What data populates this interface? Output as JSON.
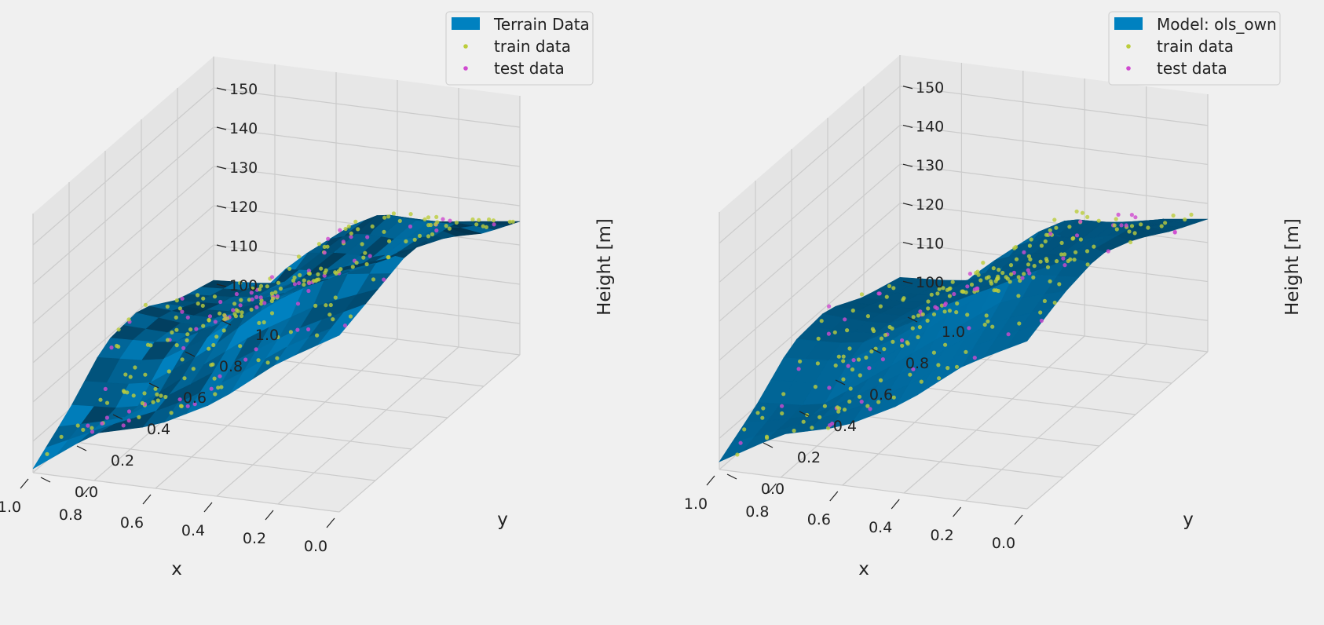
{
  "colors": {
    "background": "#f0f0f0",
    "pane": "#e6e6e6",
    "grid": "#cbcbcb",
    "surface_base": "#0081c0",
    "surface_dark": "#02344f",
    "train": "#bccd3c",
    "test": "#d04ad0"
  },
  "chart_data": [
    {
      "type": "surface3d",
      "legend": {
        "placement": "top-right",
        "entries": [
          "Terrain Data",
          "train data",
          "test data"
        ]
      },
      "xlabel": "x",
      "ylabel": "y",
      "zlabel": "Height [m]",
      "x_ticks": [
        "0.0",
        "0.2",
        "0.4",
        "0.6",
        "0.8",
        "1.0"
      ],
      "y_ticks": [
        "0.0",
        "0.2",
        "0.4",
        "0.6",
        "0.8",
        "1.0"
      ],
      "z_ticks": [
        "100",
        "110",
        "120",
        "130",
        "140",
        "150"
      ],
      "xlim": [
        0,
        1
      ],
      "ylim": [
        0,
        1
      ],
      "zlim": [
        92,
        158
      ],
      "surface_style": "faceted",
      "grid_x": [
        0.0,
        0.2,
        0.4,
        0.6,
        0.8,
        1.0
      ],
      "grid_y": [
        0.0,
        0.2,
        0.4,
        0.6,
        0.8,
        1.0
      ],
      "z_grid": [
        [
          137,
          140,
          143,
          138,
          131,
          126
        ],
        [
          128,
          133,
          147,
          143,
          133,
          124
        ],
        [
          116,
          124,
          136,
          127,
          118,
          113
        ],
        [
          108,
          113,
          119,
          114,
          111,
          108
        ],
        [
          104,
          101,
          110,
          108,
          105,
          102
        ],
        [
          93,
          100,
          109,
          110,
          104,
          101
        ]
      ]
    },
    {
      "type": "surface3d",
      "legend": {
        "placement": "top-right",
        "entries": [
          "Model: ols_own",
          "train data",
          "test data"
        ]
      },
      "xlabel": "x",
      "ylabel": "y",
      "zlabel": "Height [m]",
      "x_ticks": [
        "0.0",
        "0.2",
        "0.4",
        "0.6",
        "0.8",
        "1.0"
      ],
      "y_ticks": [
        "0.0",
        "0.2",
        "0.4",
        "0.6",
        "0.8",
        "1.0"
      ],
      "z_ticks": [
        "100",
        "110",
        "120",
        "130",
        "140",
        "150"
      ],
      "xlim": [
        0,
        1
      ],
      "ylim": [
        0,
        1
      ],
      "zlim": [
        92,
        158
      ],
      "surface_style": "smooth",
      "grid_x": [
        0.0,
        0.2,
        0.4,
        0.6,
        0.8,
        1.0
      ],
      "grid_y": [
        0.0,
        0.2,
        0.4,
        0.6,
        0.8,
        1.0
      ],
      "z_grid": [
        [
          135,
          139,
          141,
          137,
          131,
          126
        ],
        [
          127,
          134,
          145,
          141,
          132,
          124
        ],
        [
          115,
          123,
          133,
          127,
          118,
          113
        ],
        [
          107,
          112,
          118,
          114,
          110,
          107
        ],
        [
          103,
          101,
          109,
          108,
          105,
          102
        ],
        [
          94,
          100,
          108,
          109,
          104,
          101
        ]
      ]
    }
  ]
}
